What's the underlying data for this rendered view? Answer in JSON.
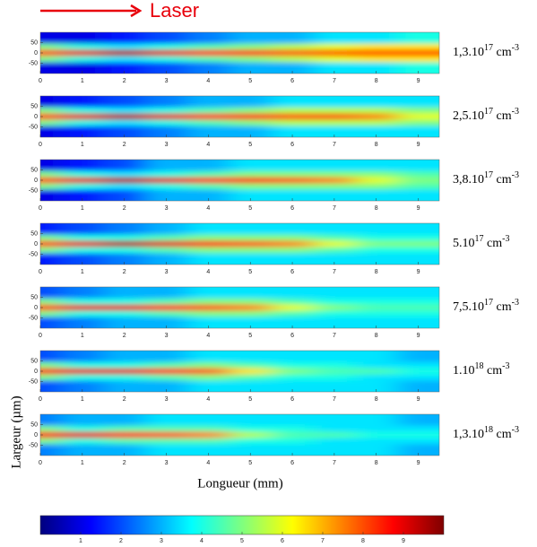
{
  "header": {
    "arrow_label": "Laser"
  },
  "xlabel": "Longueur (mm)",
  "ylabel": "Largeur (µm)",
  "chart_data": [
    {
      "type": "heatmap",
      "label": {
        "base": "1,3.10",
        "exp": "17",
        "unit": " cm",
        "unit_exp": "-3"
      },
      "x": [
        0,
        1,
        2,
        3,
        4,
        5,
        6,
        7,
        8,
        9
      ],
      "y": [
        60,
        30,
        0,
        -30,
        -60
      ],
      "xlim": [
        0,
        9.5
      ],
      "ylim": [
        -100,
        100
      ],
      "xticks": [
        0,
        1,
        2,
        3,
        4,
        5,
        6,
        7,
        8,
        9
      ],
      "yticks": [
        50,
        0,
        -50
      ],
      "z": [
        [
          1,
          1,
          1.5,
          2,
          2.5,
          3,
          3,
          3.5,
          3.5,
          4
        ],
        [
          5,
          4,
          3.5,
          4,
          4.5,
          5,
          5.5,
          6,
          6.5,
          6.5
        ],
        [
          8,
          9,
          9.5,
          9,
          8.5,
          8.5,
          8,
          8,
          8,
          8
        ],
        [
          5,
          4,
          3.5,
          4,
          4.5,
          5,
          5.5,
          6,
          6.5,
          6.5
        ],
        [
          1,
          1,
          1.5,
          2,
          2.5,
          3,
          3,
          3.5,
          3.5,
          4
        ]
      ]
    },
    {
      "type": "heatmap",
      "label": {
        "base": "2,5.10",
        "exp": "17",
        "unit": " cm",
        "unit_exp": "-3"
      },
      "x": [
        0,
        1,
        2,
        3,
        4,
        5,
        6,
        7,
        8,
        9
      ],
      "y": [
        60,
        30,
        0,
        -30,
        -60
      ],
      "xlim": [
        0,
        9.5
      ],
      "ylim": [
        -100,
        100
      ],
      "xticks": [
        0,
        1,
        2,
        3,
        4,
        5,
        6,
        7,
        8,
        9
      ],
      "yticks": [
        50,
        0,
        -50
      ],
      "z": [
        [
          1,
          1.5,
          2,
          2.5,
          3,
          3,
          3.5,
          3.5,
          3.5,
          3.5
        ],
        [
          5,
          4,
          3.5,
          4,
          4.5,
          5,
          5.5,
          5.5,
          5.5,
          5
        ],
        [
          8,
          9,
          9.5,
          9,
          8.5,
          8.5,
          8,
          8,
          7.5,
          6
        ],
        [
          5,
          4,
          3.5,
          4,
          4.5,
          5,
          5.5,
          5.5,
          5.5,
          5
        ],
        [
          1,
          1.5,
          2,
          2.5,
          3,
          3,
          3.5,
          3.5,
          3.5,
          3.5
        ]
      ]
    },
    {
      "type": "heatmap",
      "label": {
        "base": "3,8.10",
        "exp": "17",
        "unit": " cm",
        "unit_exp": "-3"
      },
      "x": [
        0,
        1,
        2,
        3,
        4,
        5,
        6,
        7,
        8,
        9
      ],
      "y": [
        60,
        30,
        0,
        -30,
        -60
      ],
      "xlim": [
        0,
        9.5
      ],
      "ylim": [
        -100,
        100
      ],
      "xticks": [
        0,
        1,
        2,
        3,
        4,
        5,
        6,
        7,
        8,
        9
      ],
      "yticks": [
        50,
        0,
        -50
      ],
      "z": [
        [
          1,
          1.5,
          2,
          3,
          3,
          3.5,
          3.5,
          3.5,
          3.5,
          3.5
        ],
        [
          5,
          4,
          3.5,
          4,
          4.5,
          5,
          5,
          5,
          5,
          4.5
        ],
        [
          8,
          9,
          9.5,
          9,
          8.5,
          8.5,
          8,
          7.5,
          6,
          5
        ],
        [
          5,
          4,
          3.5,
          4,
          4.5,
          5,
          5,
          5,
          5,
          4.5
        ],
        [
          1,
          1.5,
          2,
          3,
          3,
          3.5,
          3.5,
          3.5,
          3.5,
          3.5
        ]
      ]
    },
    {
      "type": "heatmap",
      "label": {
        "base": "5.10",
        "exp": "17",
        "unit": " cm",
        "unit_exp": "-3"
      },
      "x": [
        0,
        1,
        2,
        3,
        4,
        5,
        6,
        7,
        8,
        9
      ],
      "y": [
        60,
        30,
        0,
        -30,
        -60
      ],
      "xlim": [
        0,
        9.5
      ],
      "ylim": [
        -100,
        100
      ],
      "xticks": [
        0,
        1,
        2,
        3,
        4,
        5,
        6,
        7,
        8,
        9
      ],
      "yticks": [
        50,
        0,
        -50
      ],
      "z": [
        [
          1.5,
          2,
          2.5,
          3,
          3.5,
          3.5,
          3.5,
          3.5,
          3.5,
          3.5
        ],
        [
          5,
          4,
          4,
          4.5,
          5,
          5,
          5,
          4.5,
          4,
          4
        ],
        [
          8,
          9,
          9.5,
          9,
          8.5,
          8,
          7.5,
          6,
          5,
          5
        ],
        [
          5,
          4,
          4,
          4.5,
          5,
          5,
          5,
          4.5,
          4,
          4
        ],
        [
          1.5,
          2,
          2.5,
          3,
          3.5,
          3.5,
          3.5,
          3.5,
          3.5,
          3.5
        ]
      ]
    },
    {
      "type": "heatmap",
      "label": {
        "base": "7,5.10",
        "exp": "17",
        "unit": " cm",
        "unit_exp": "-3"
      },
      "x": [
        0,
        1,
        2,
        3,
        4,
        5,
        6,
        7,
        8,
        9
      ],
      "y": [
        60,
        30,
        0,
        -30,
        -60
      ],
      "xlim": [
        0,
        9.5
      ],
      "ylim": [
        -100,
        100
      ],
      "xticks": [
        0,
        1,
        2,
        3,
        4,
        5,
        6,
        7,
        8,
        9
      ],
      "yticks": [
        50,
        0,
        -50
      ],
      "z": [
        [
          2,
          2.5,
          3,
          3,
          3.5,
          3.5,
          3.5,
          3.5,
          3.5,
          3.5
        ],
        [
          5,
          4,
          4,
          4.5,
          5,
          5,
          4.5,
          4,
          4,
          4
        ],
        [
          8,
          9,
          9,
          8.5,
          8,
          7.5,
          6,
          5,
          4.5,
          4.5
        ],
        [
          5,
          4,
          4,
          4.5,
          5,
          5,
          4.5,
          4,
          4,
          4
        ],
        [
          2,
          2.5,
          3,
          3,
          3.5,
          3.5,
          3.5,
          3.5,
          3.5,
          3.5
        ]
      ]
    },
    {
      "type": "heatmap",
      "label": {
        "base": "1.10",
        "exp": "18",
        "unit": " cm",
        "unit_exp": "-3"
      },
      "x": [
        0,
        1,
        2,
        3,
        4,
        5,
        6,
        7,
        8,
        9
      ],
      "y": [
        60,
        30,
        0,
        -30,
        -60
      ],
      "xlim": [
        0,
        9.5
      ],
      "ylim": [
        -100,
        100
      ],
      "xticks": [
        0,
        1,
        2,
        3,
        4,
        5,
        6,
        7,
        8,
        9
      ],
      "yticks": [
        50,
        0,
        -50
      ],
      "z": [
        [
          2,
          2.5,
          3,
          3,
          3.5,
          3.5,
          3.5,
          3.5,
          3.5,
          3
        ],
        [
          5,
          4,
          4,
          4.5,
          5,
          4.5,
          4,
          4,
          3.5,
          3.5
        ],
        [
          8.5,
          9,
          9,
          8.5,
          8,
          6.5,
          5,
          4.5,
          4.5,
          4
        ],
        [
          5,
          4,
          4,
          4.5,
          5,
          4.5,
          4,
          4,
          3.5,
          3.5
        ],
        [
          2,
          2.5,
          3,
          3,
          3.5,
          3.5,
          3.5,
          3.5,
          3.5,
          3
        ]
      ]
    },
    {
      "type": "heatmap",
      "label": {
        "base": "1,3.10",
        "exp": "18",
        "unit": " cm",
        "unit_exp": "-3"
      },
      "x": [
        0,
        1,
        2,
        3,
        4,
        5,
        6,
        7,
        8,
        9
      ],
      "y": [
        60,
        30,
        0,
        -30,
        -60
      ],
      "xlim": [
        0,
        9.5
      ],
      "ylim": [
        -100,
        100
      ],
      "xticks": [
        0,
        1,
        2,
        3,
        4,
        5,
        6,
        7,
        8,
        9
      ],
      "yticks": [
        50,
        0,
        -50
      ],
      "z": [
        [
          2.5,
          3,
          3,
          3.5,
          3.5,
          3.5,
          3.5,
          3.5,
          3.5,
          3
        ],
        [
          5,
          4,
          4.5,
          4.5,
          4.5,
          4,
          4,
          3.5,
          3.5,
          3.5
        ],
        [
          8.5,
          9,
          8.5,
          8,
          7.5,
          5.5,
          4.5,
          4.5,
          4,
          4
        ],
        [
          5,
          4,
          4.5,
          4.5,
          4.5,
          4,
          4,
          3.5,
          3.5,
          3.5
        ],
        [
          2.5,
          3,
          3,
          3.5,
          3.5,
          3.5,
          3.5,
          3.5,
          3.5,
          3
        ]
      ]
    }
  ],
  "colorbar": {
    "lim": [
      0,
      10
    ],
    "ticks": [
      1,
      2,
      3,
      4,
      5,
      6,
      7,
      8,
      9
    ],
    "colormap": [
      "#00007f",
      "#0000ff",
      "#007fff",
      "#00ffff",
      "#7fff7f",
      "#ffff00",
      "#ff7f00",
      "#ff0000",
      "#7f0000"
    ]
  }
}
